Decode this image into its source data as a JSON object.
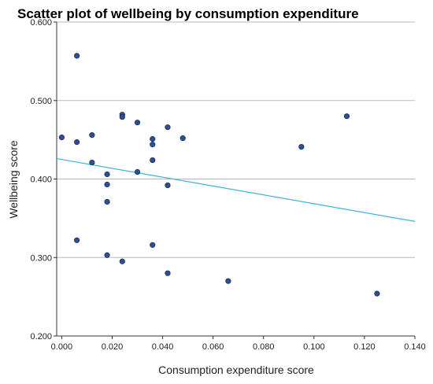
{
  "chart_data": {
    "type": "scatter",
    "title": "Scatter plot of wellbeing by consumption expenditure",
    "xlabel": "Consumption expenditure score",
    "ylabel": "Wellbeing score",
    "xlim": [
      -0.002,
      0.14
    ],
    "ylim": [
      0.2,
      0.6
    ],
    "xticks": [
      "0.000",
      "0.020",
      "0.040",
      "0.060",
      "0.080",
      "0.100",
      "0.120",
      "0.140"
    ],
    "xtick_values": [
      0,
      0.02,
      0.04,
      0.06,
      0.08,
      0.1,
      0.12,
      0.14
    ],
    "yticks": [
      "0.200",
      "0.300",
      "0.400",
      "0.500",
      "0.600"
    ],
    "ytick_values": [
      0.2,
      0.3,
      0.4,
      0.5,
      0.6
    ],
    "grid": "horizontal",
    "points": [
      {
        "x": 0.0,
        "y": 0.453
      },
      {
        "x": 0.006,
        "y": 0.557
      },
      {
        "x": 0.006,
        "y": 0.447
      },
      {
        "x": 0.006,
        "y": 0.322
      },
      {
        "x": 0.012,
        "y": 0.456
      },
      {
        "x": 0.012,
        "y": 0.421
      },
      {
        "x": 0.018,
        "y": 0.406
      },
      {
        "x": 0.018,
        "y": 0.393
      },
      {
        "x": 0.018,
        "y": 0.371
      },
      {
        "x": 0.018,
        "y": 0.303
      },
      {
        "x": 0.024,
        "y": 0.482
      },
      {
        "x": 0.024,
        "y": 0.479
      },
      {
        "x": 0.024,
        "y": 0.295
      },
      {
        "x": 0.03,
        "y": 0.472
      },
      {
        "x": 0.03,
        "y": 0.409
      },
      {
        "x": 0.036,
        "y": 0.451
      },
      {
        "x": 0.036,
        "y": 0.444
      },
      {
        "x": 0.036,
        "y": 0.424
      },
      {
        "x": 0.036,
        "y": 0.316
      },
      {
        "x": 0.042,
        "y": 0.466
      },
      {
        "x": 0.042,
        "y": 0.392
      },
      {
        "x": 0.042,
        "y": 0.28
      },
      {
        "x": 0.048,
        "y": 0.452
      },
      {
        "x": 0.066,
        "y": 0.27
      },
      {
        "x": 0.095,
        "y": 0.441
      },
      {
        "x": 0.113,
        "y": 0.48
      },
      {
        "x": 0.125,
        "y": 0.254
      }
    ],
    "trendline": {
      "x": [
        -0.002,
        0.14
      ],
      "y": [
        0.426,
        0.346
      ]
    },
    "colors": {
      "point_fill": "#2f4f8f",
      "point_stroke": "#1a2f5c",
      "trendline": "#38b6d8"
    }
  }
}
